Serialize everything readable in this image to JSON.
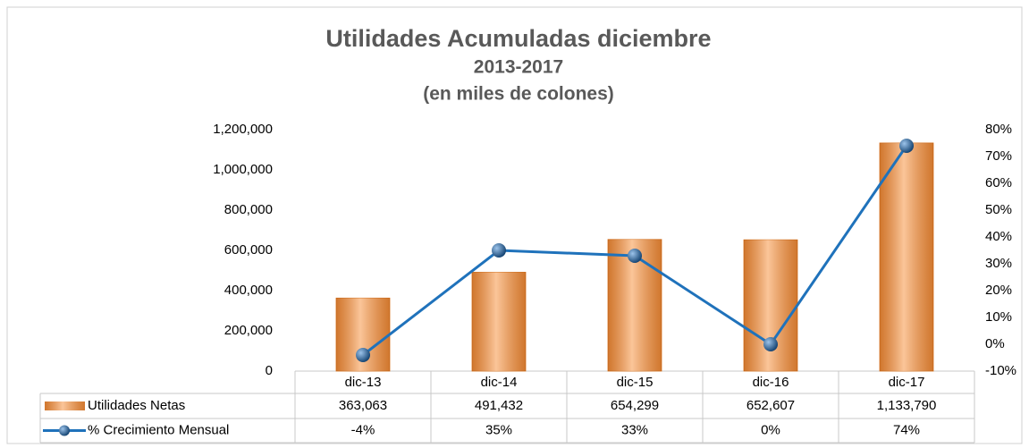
{
  "chart_data": {
    "type": "bar",
    "title": "Utilidades Acumuladas diciembre",
    "subtitle": [
      "2013-2017",
      "(en miles de colones)"
    ],
    "categories": [
      "dic-13",
      "dic-14",
      "dic-15",
      "dic-16",
      "dic-17"
    ],
    "series": [
      {
        "name": "Utilidades Netas",
        "type": "bar",
        "color": "#f79646",
        "values": [
          363063,
          491432,
          654299,
          652607,
          1133790
        ],
        "value_labels": [
          "363,063",
          "491,432",
          "654,299",
          "652,607",
          "1,133,790"
        ]
      },
      {
        "name": "% Crecimiento Mensual",
        "type": "line",
        "axis": "y2",
        "color": "#1f72bb",
        "values": [
          -4,
          35,
          33,
          0,
          74
        ],
        "value_labels": [
          "-4%",
          "35%",
          "33%",
          "0%",
          "74%"
        ]
      }
    ],
    "ylim": [
      0,
      1200000
    ],
    "yticks": [
      0,
      {
        "value": 200000,
        "label": "200,000"
      },
      {
        "value": 400000,
        "label": "400,000"
      },
      {
        "value": 600000,
        "label": "600,000"
      },
      {
        "value": 800000,
        "label": "800,000"
      },
      {
        "value": 1000000,
        "label": "1,000,000"
      },
      {
        "value": 1200000,
        "label": "1,200,000"
      }
    ],
    "y2lim": [
      -10,
      80
    ],
    "y2ticks": [
      {
        "value": -10,
        "label": "-10%"
      },
      {
        "value": 0,
        "label": "0%"
      },
      {
        "value": 10,
        "label": "10%"
      },
      {
        "value": 20,
        "label": "20%"
      },
      {
        "value": 30,
        "label": "30%"
      },
      {
        "value": 40,
        "label": "40%"
      },
      {
        "value": 50,
        "label": "50%"
      },
      {
        "value": 60,
        "label": "60%"
      },
      {
        "value": 70,
        "label": "70%"
      },
      {
        "value": 80,
        "label": "80%"
      }
    ],
    "grid": false,
    "data_table": true
  }
}
